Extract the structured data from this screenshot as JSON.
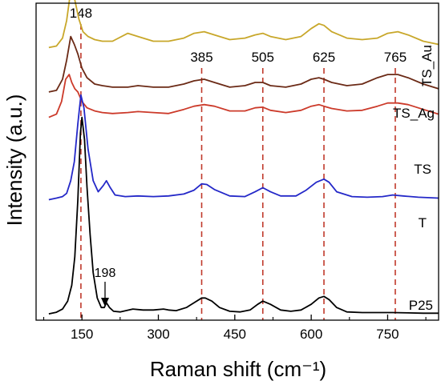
{
  "chart_data": {
    "type": "line",
    "xlabel": "Raman shift (cm⁻¹)",
    "ylabel": "Intensity (a.u.)",
    "xlim": [
      60,
      850
    ],
    "x_ticks": [
      "150",
      "300",
      "450",
      "600",
      "750"
    ],
    "x_tick_values": [
      150,
      300,
      450,
      600,
      750
    ],
    "grid": false,
    "reference_lines": [
      {
        "x": 148,
        "label": "148"
      },
      {
        "x": 385,
        "label": "385"
      },
      {
        "x": 505,
        "label": "505"
      },
      {
        "x": 625,
        "label": "625"
      },
      {
        "x": 765,
        "label": "765"
      }
    ],
    "annotation": {
      "x": 198,
      "label": "198"
    },
    "series": [
      {
        "name": "TS_Au",
        "color": "#c8a72a",
        "baseline": 0.86,
        "x": [
          85,
          100,
          112,
          120,
          128,
          136,
          144,
          152,
          162,
          175,
          190,
          210,
          240,
          260,
          290,
          320,
          350,
          370,
          390,
          410,
          440,
          470,
          490,
          505,
          520,
          550,
          580,
          600,
          615,
          625,
          640,
          670,
          700,
          730,
          750,
          770,
          790,
          820,
          850
        ],
        "values": [
          0,
          0.005,
          0.03,
          0.085,
          0.18,
          0.15,
          0.09,
          0.05,
          0.035,
          0.025,
          0.02,
          0.02,
          0.045,
          0.035,
          0.02,
          0.02,
          0.03,
          0.045,
          0.05,
          0.04,
          0.025,
          0.03,
          0.04,
          0.045,
          0.035,
          0.025,
          0.035,
          0.06,
          0.075,
          0.07,
          0.05,
          0.03,
          0.025,
          0.03,
          0.045,
          0.05,
          0.04,
          0.02,
          0.01
        ]
      },
      {
        "name": "TS_Ag",
        "color": "#6b2a16",
        "baseline": 0.72,
        "x": [
          85,
          100,
          112,
          120,
          128,
          135,
          142,
          150,
          160,
          175,
          190,
          210,
          240,
          260,
          290,
          320,
          350,
          370,
          390,
          410,
          440,
          470,
          490,
          505,
          520,
          550,
          580,
          600,
          615,
          625,
          640,
          670,
          700,
          730,
          750,
          770,
          790,
          820,
          850
        ],
        "values": [
          0,
          0.005,
          0.04,
          0.1,
          0.175,
          0.15,
          0.12,
          0.075,
          0.045,
          0.025,
          0.02,
          0.015,
          0.015,
          0.02,
          0.015,
          0.015,
          0.025,
          0.035,
          0.04,
          0.03,
          0.015,
          0.02,
          0.03,
          0.03,
          0.02,
          0.015,
          0.025,
          0.04,
          0.045,
          0.04,
          0.03,
          0.02,
          0.025,
          0.045,
          0.055,
          0.055,
          0.045,
          0.025,
          0.01
        ]
      },
      {
        "name": "TS",
        "color": "#cc3a2a",
        "baseline": 0.64,
        "x": [
          85,
          100,
          110,
          118,
          125,
          130,
          136,
          142,
          150,
          160,
          175,
          190,
          210,
          240,
          260,
          290,
          320,
          350,
          370,
          390,
          410,
          440,
          470,
          490,
          505,
          520,
          550,
          580,
          600,
          615,
          625,
          640,
          670,
          700,
          730,
          750,
          770,
          790,
          820,
          850
        ],
        "values": [
          0,
          0.01,
          0.05,
          0.12,
          0.135,
          0.11,
          0.09,
          0.08,
          0.05,
          0.03,
          0.02,
          0.015,
          0.012,
          0.015,
          0.018,
          0.015,
          0.012,
          0.025,
          0.035,
          0.04,
          0.035,
          0.02,
          0.02,
          0.03,
          0.032,
          0.022,
          0.015,
          0.022,
          0.035,
          0.04,
          0.035,
          0.028,
          0.02,
          0.022,
          0.035,
          0.045,
          0.045,
          0.04,
          0.025,
          0.01
        ]
      },
      {
        "name": "T",
        "color": "#2428c8",
        "baseline": 0.38,
        "x": [
          85,
          100,
          112,
          120,
          128,
          135,
          142,
          148,
          154,
          162,
          172,
          182,
          192,
          198,
          205,
          215,
          235,
          260,
          290,
          320,
          350,
          370,
          385,
          395,
          410,
          440,
          470,
          490,
          505,
          520,
          540,
          570,
          590,
          610,
          625,
          635,
          650,
          680,
          710,
          740,
          760,
          780,
          810,
          850
        ],
        "values": [
          0,
          0.005,
          0.01,
          0.02,
          0.06,
          0.12,
          0.24,
          0.33,
          0.29,
          0.16,
          0.06,
          0.025,
          0.045,
          0.06,
          0.04,
          0.015,
          0.01,
          0.012,
          0.01,
          0.012,
          0.018,
          0.03,
          0.05,
          0.048,
          0.032,
          0.012,
          0.01,
          0.025,
          0.038,
          0.025,
          0.012,
          0.012,
          0.03,
          0.055,
          0.065,
          0.055,
          0.025,
          0.01,
          0.008,
          0.01,
          0.015,
          0.012,
          0.008,
          0.005
        ]
      },
      {
        "name": "P25",
        "color": "#000000",
        "baseline": 0.02,
        "x": [
          85,
          100,
          112,
          122,
          130,
          136,
          142,
          147,
          150,
          155,
          160,
          166,
          172,
          180,
          188,
          194,
          198,
          204,
          212,
          225,
          250,
          270,
          290,
          310,
          320,
          335,
          355,
          370,
          385,
          392,
          405,
          420,
          440,
          460,
          480,
          495,
          505,
          520,
          540,
          560,
          580,
          600,
          615,
          625,
          635,
          650,
          670,
          700,
          730,
          760,
          790,
          820,
          850
        ],
        "values": [
          0,
          0.005,
          0.015,
          0.04,
          0.09,
          0.18,
          0.36,
          0.57,
          0.62,
          0.55,
          0.4,
          0.25,
          0.13,
          0.05,
          0.02,
          0.02,
          0.035,
          0.02,
          0.008,
          0.006,
          0.015,
          0.012,
          0.012,
          0.015,
          0.012,
          0.01,
          0.02,
          0.035,
          0.05,
          0.05,
          0.04,
          0.02,
          0.008,
          0.006,
          0.012,
          0.03,
          0.04,
          0.03,
          0.012,
          0.008,
          0.012,
          0.03,
          0.05,
          0.055,
          0.045,
          0.02,
          0.006,
          0.004,
          0.004,
          0.004,
          0.003,
          0.002,
          0.002
        ]
      }
    ]
  }
}
